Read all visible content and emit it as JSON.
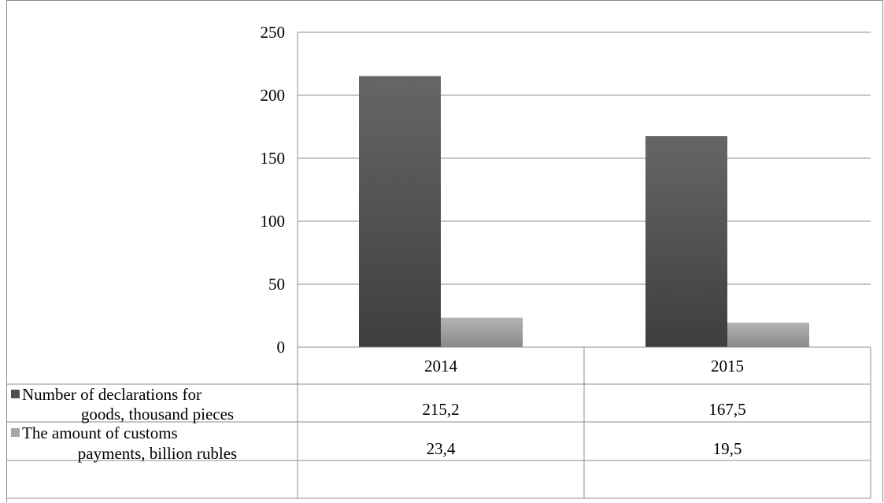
{
  "chart_data": {
    "type": "bar",
    "categories": [
      "2014",
      "2015"
    ],
    "series": [
      {
        "name": "Number of declarations for goods, thousand pieces",
        "name_lines": [
          "Number of declarations for",
          "goods, thousand pieces"
        ],
        "values": [
          215.2,
          167.5
        ],
        "value_labels": [
          "215,2",
          "167,5"
        ],
        "color": "#555555"
      },
      {
        "name": "The amount of customs payments, billion rubles",
        "name_lines": [
          "The amount of customs",
          "payments, billion rubles"
        ],
        "values": [
          23.4,
          19.5
        ],
        "value_labels": [
          "23,4",
          "19,5"
        ],
        "color": "#a6a6a6"
      }
    ],
    "ylim": [
      0,
      250
    ],
    "yticks": [
      0,
      50,
      100,
      150,
      200,
      250
    ],
    "grid": true,
    "legend": "data table"
  }
}
